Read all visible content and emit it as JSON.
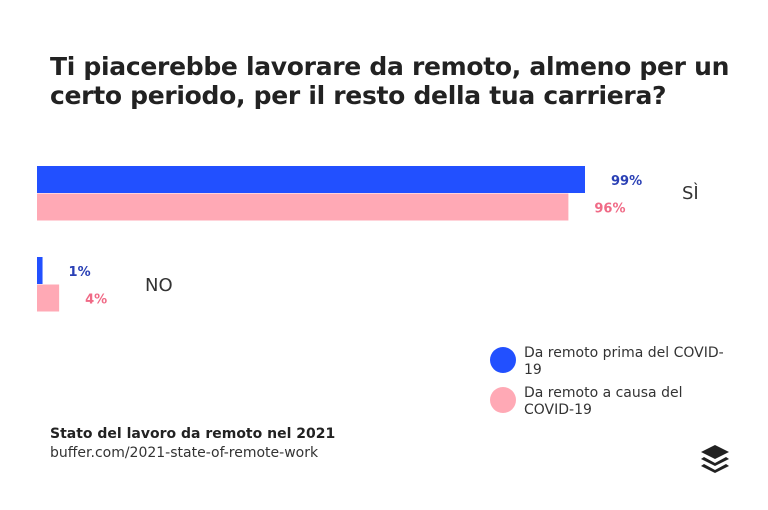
{
  "chart_data": {
    "type": "bar",
    "orientation": "horizontal",
    "title": "Ti piacerebbe lavorare da remoto, almeno per un certo periodo, per il resto della tua carriera?",
    "categories": [
      "SÌ",
      "NO"
    ],
    "series": [
      {
        "name": "Da remoto prima del COVID-19",
        "values": [
          99,
          1
        ],
        "labels": [
          "99%",
          "1%"
        ],
        "color": "#2250ff",
        "label_color": "#2a40b5"
      },
      {
        "name": "Da remoto a causa del COVID-19",
        "values": [
          96,
          4
        ],
        "labels": [
          "96%",
          "4%"
        ],
        "color": "#ffa9b5",
        "label_color": "#f06a86"
      }
    ],
    "xlim": [
      0,
      100
    ],
    "grid": false,
    "legend": "bottom-right"
  },
  "source": {
    "title": "Stato del lavoro da remoto nel 2021",
    "url": "buffer.com/2021-state-of-remote-work"
  },
  "logo": "buffer-layers-icon"
}
